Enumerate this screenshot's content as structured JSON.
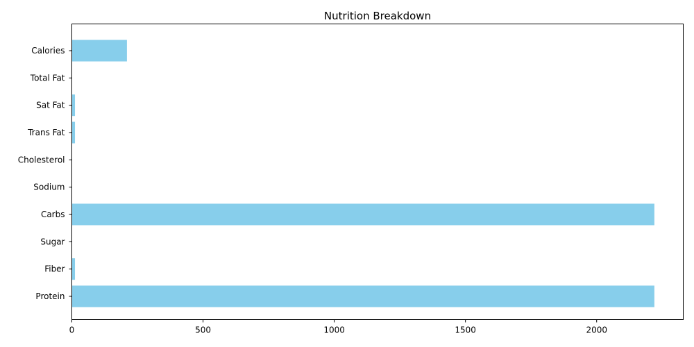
{
  "chart_data": {
    "type": "bar",
    "orientation": "horizontal",
    "title": "Nutrition Breakdown",
    "xlabel": "",
    "ylabel": "",
    "categories": [
      "Calories",
      "Total Fat",
      "Sat Fat",
      "Trans Fat",
      "Cholesterol",
      "Sodium",
      "Carbs",
      "Sugar",
      "Fiber",
      "Protein"
    ],
    "values": [
      210,
      0,
      12,
      12,
      0,
      0,
      2220,
      0,
      12,
      2220
    ],
    "xlim": [
      0,
      2330
    ],
    "x_ticks": [
      0,
      500,
      1000,
      1500,
      2000
    ],
    "x_tick_labels": [
      "0",
      "500",
      "1000",
      "1500",
      "2000"
    ],
    "grid": false,
    "bar_color": "#87ceeb"
  }
}
